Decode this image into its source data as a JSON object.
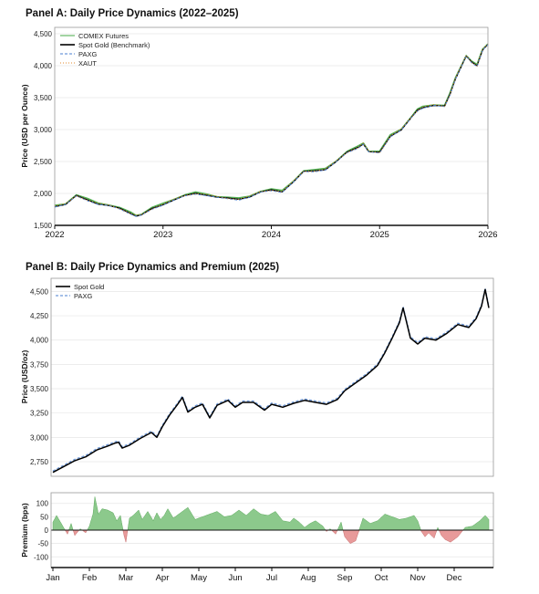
{
  "chart_data": [
    {
      "type": "line",
      "title": "Panel A: Daily Price Dynamics (2022–2025)",
      "xlabel": "",
      "ylabel": "Price (USD per Ounce)",
      "x_ticks": [
        "2022",
        "2023",
        "2024",
        "2025",
        "2026"
      ],
      "xlim": [
        2022,
        2026
      ],
      "ylim": [
        1500,
        4600
      ],
      "y_ticks": [
        1500,
        2000,
        2500,
        3000,
        3500,
        4000,
        4500
      ],
      "y_tick_labels": [
        "1,500",
        "2,000",
        "2,500",
        "3,000",
        "3,500",
        "4,000",
        "4,500"
      ],
      "grid": true,
      "legend_position": "top-left",
      "series": [
        {
          "name": "COMEX Futures",
          "color": "#55b055",
          "style": "solid"
        },
        {
          "name": "Spot Gold (Benchmark)",
          "color": "#000000",
          "style": "solid"
        },
        {
          "name": "PAXG",
          "color": "#4a7fd0",
          "style": "dashed"
        },
        {
          "name": "XAUT",
          "color": "#e08a2c",
          "style": "dotted"
        }
      ],
      "x": [
        2022.0,
        2022.1,
        2022.2,
        2022.3,
        2022.4,
        2022.5,
        2022.6,
        2022.7,
        2022.75,
        2022.8,
        2022.9,
        2023.0,
        2023.1,
        2023.2,
        2023.3,
        2023.4,
        2023.5,
        2023.6,
        2023.7,
        2023.8,
        2023.9,
        2024.0,
        2024.1,
        2024.2,
        2024.3,
        2024.4,
        2024.5,
        2024.6,
        2024.7,
        2024.8,
        2024.85,
        2024.9,
        2025.0,
        2025.1,
        2025.2,
        2025.3,
        2025.35,
        2025.4,
        2025.5,
        2025.6,
        2025.65,
        2025.7,
        2025.8,
        2025.85,
        2025.9,
        2025.95,
        2026.0
      ],
      "values": [
        1800,
        1830,
        1960,
        1900,
        1840,
        1810,
        1760,
        1690,
        1650,
        1660,
        1760,
        1830,
        1900,
        1960,
        2000,
        1980,
        1940,
        1920,
        1910,
        1950,
        2020,
        2050,
        2030,
        2180,
        2340,
        2350,
        2380,
        2500,
        2640,
        2720,
        2780,
        2650,
        2640,
        2900,
        3000,
        3200,
        3300,
        3350,
        3380,
        3360,
        3550,
        3800,
        4150,
        4050,
        4000,
        4250,
        4330
      ]
    },
    {
      "type": "line",
      "title": "Panel B: Daily Price Dynamics and Premium (2025)",
      "xlabel": "",
      "ylabel": "Price (USD/oz)",
      "x_ticks": [
        "Jan",
        "Feb",
        "Mar",
        "Apr",
        "May",
        "Jun",
        "Jul",
        "Aug",
        "Sep",
        "Oct",
        "Nov",
        "Dec"
      ],
      "xlim": [
        0,
        11.95
      ],
      "ylim": [
        2600,
        4560
      ],
      "y_ticks": [
        2750,
        3000,
        3250,
        3500,
        3750,
        4000,
        4250,
        4500
      ],
      "y_tick_labels": [
        "2,750",
        "3,000",
        "3,250",
        "3,500",
        "3,750",
        "4,000",
        "4,250",
        "4,500"
      ],
      "grid": true,
      "legend_position": "top-left",
      "series": [
        {
          "name": "Spot Gold",
          "color": "#000000",
          "style": "solid"
        },
        {
          "name": "PAXG",
          "color": "#4a7fd0",
          "style": "dashed"
        }
      ],
      "x": [
        0,
        0.3,
        0.6,
        0.9,
        1.2,
        1.5,
        1.7,
        1.8,
        1.9,
        2.1,
        2.4,
        2.7,
        2.85,
        3.0,
        3.2,
        3.4,
        3.55,
        3.7,
        3.9,
        4.1,
        4.3,
        4.5,
        4.8,
        5.0,
        5.2,
        5.5,
        5.8,
        6.0,
        6.3,
        6.6,
        6.9,
        7.2,
        7.5,
        7.8,
        8.0,
        8.3,
        8.6,
        8.9,
        9.1,
        9.3,
        9.5,
        9.6,
        9.8,
        10.0,
        10.2,
        10.5,
        10.8,
        11.1,
        11.4,
        11.6,
        11.75,
        11.85,
        11.95
      ],
      "values": [
        2640,
        2700,
        2760,
        2800,
        2870,
        2910,
        2940,
        2950,
        2890,
        2920,
        2990,
        3050,
        3000,
        3110,
        3230,
        3330,
        3410,
        3260,
        3310,
        3340,
        3200,
        3330,
        3380,
        3310,
        3360,
        3360,
        3280,
        3340,
        3310,
        3350,
        3380,
        3360,
        3340,
        3390,
        3480,
        3560,
        3640,
        3740,
        3870,
        4020,
        4180,
        4330,
        4020,
        3960,
        4020,
        4000,
        4070,
        4160,
        4130,
        4220,
        4350,
        4520,
        4330
      ]
    },
    {
      "type": "area",
      "title": "",
      "xlabel": "",
      "ylabel": "Premium (bps)",
      "x_ticks": [
        "Jan",
        "Feb",
        "Mar",
        "Apr",
        "May",
        "Jun",
        "Jul",
        "Aug",
        "Sep",
        "Oct",
        "Nov",
        "Dec"
      ],
      "xlim": [
        0,
        11.95
      ],
      "ylim": [
        -140,
        140
      ],
      "y_ticks": [
        -100,
        -50,
        0,
        50,
        100
      ],
      "y_tick_labels": [
        "-100",
        "-50",
        "0",
        "50",
        "100"
      ],
      "grid": true,
      "positive_color": "#8cc98c",
      "negative_color": "#e89a9a",
      "x": [
        0,
        0.1,
        0.25,
        0.4,
        0.5,
        0.6,
        0.75,
        0.9,
        1.0,
        1.1,
        1.15,
        1.25,
        1.35,
        1.5,
        1.65,
        1.75,
        1.85,
        1.95,
        2.0,
        2.1,
        2.2,
        2.35,
        2.45,
        2.6,
        2.75,
        2.85,
        2.95,
        3.05,
        3.15,
        3.3,
        3.5,
        3.7,
        3.9,
        4.1,
        4.3,
        4.5,
        4.7,
        4.9,
        5.1,
        5.3,
        5.5,
        5.7,
        5.9,
        6.1,
        6.3,
        6.5,
        6.6,
        6.75,
        6.9,
        7.05,
        7.2,
        7.4,
        7.5,
        7.6,
        7.75,
        7.9,
        8.0,
        8.15,
        8.3,
        8.5,
        8.7,
        8.9,
        9.1,
        9.3,
        9.5,
        9.7,
        9.9,
        10.0,
        10.1,
        10.2,
        10.3,
        10.45,
        10.55,
        10.65,
        10.75,
        10.9,
        11.1,
        11.3,
        11.5,
        11.7,
        11.85,
        11.95
      ],
      "values": [
        30,
        55,
        20,
        -15,
        25,
        -20,
        5,
        -10,
        15,
        60,
        125,
        60,
        80,
        75,
        65,
        35,
        55,
        -20,
        -45,
        45,
        55,
        75,
        40,
        70,
        35,
        65,
        40,
        55,
        80,
        45,
        65,
        85,
        40,
        50,
        60,
        70,
        50,
        55,
        75,
        55,
        80,
        60,
        55,
        70,
        35,
        30,
        45,
        30,
        10,
        25,
        35,
        15,
        -5,
        5,
        -15,
        30,
        -25,
        -50,
        -40,
        45,
        25,
        35,
        60,
        50,
        40,
        45,
        55,
        35,
        -5,
        -25,
        -10,
        -30,
        10,
        -20,
        -35,
        -45,
        -25,
        10,
        15,
        35,
        55,
        40
      ]
    }
  ]
}
